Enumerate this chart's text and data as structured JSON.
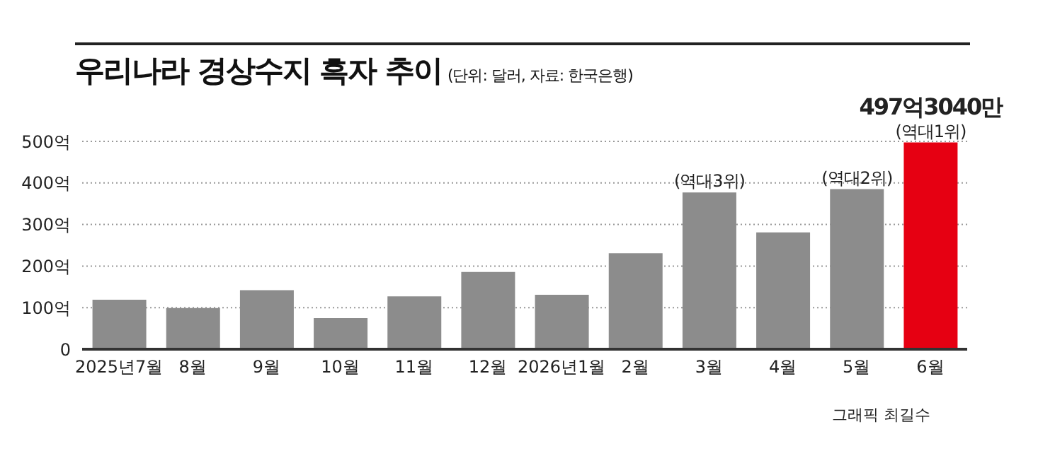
{
  "chart_data": {
    "type": "bar",
    "title": "우리나라 경상수지 흑자 추이",
    "subtitle": "(단위: 달러, 자료: 한국은행)",
    "categories": [
      "2025년7월",
      "8월",
      "9월",
      "10월",
      "11월",
      "12월",
      "2026년1월",
      "2월",
      "3월",
      "4월",
      "5월",
      "6월"
    ],
    "values": [
      119,
      99,
      142,
      75,
      127,
      186,
      131,
      231,
      377,
      281,
      385,
      497.304
    ],
    "colors": [
      "#8c8c8c",
      "#8c8c8c",
      "#8c8c8c",
      "#8c8c8c",
      "#8c8c8c",
      "#8c8c8c",
      "#8c8c8c",
      "#8c8c8c",
      "#8c8c8c",
      "#8c8c8c",
      "#8c8c8c",
      "#e60012"
    ],
    "value_labels": [
      null,
      null,
      null,
      null,
      null,
      null,
      null,
      null,
      null,
      null,
      null,
      "497억3040만"
    ],
    "ylim": [
      0,
      500
    ],
    "yticks": [
      {
        "value": 0,
        "label": "0"
      },
      {
        "value": 100,
        "label": "100억"
      },
      {
        "value": 200,
        "label": "200억"
      },
      {
        "value": 300,
        "label": "300억"
      },
      {
        "value": 400,
        "label": "400억"
      },
      {
        "value": 500,
        "label": "500억"
      }
    ],
    "grid": "y",
    "annotations": [
      {
        "text": "(역대3위)",
        "x": "3월",
        "y": 377
      },
      {
        "text": "(역대2위)",
        "x": "5월",
        "y": 385
      },
      {
        "text": "(역대1위)",
        "x": "6월",
        "y": 497.304
      },
      "그래픽 최길수"
    ]
  }
}
